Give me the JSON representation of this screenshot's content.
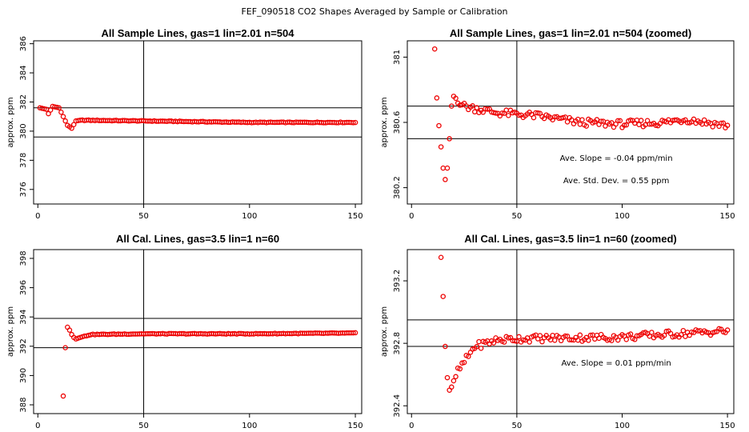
{
  "figure_title": "FEF_090518  CO2 Shapes Averaged by Sample or Calibration",
  "chart_data": [
    {
      "type": "scatter",
      "title": "All Sample Lines, gas=1 lin=2.01 n=504",
      "ylabel": "approx. ppm",
      "xlim": [
        -2,
        153
      ],
      "ylim": [
        375,
        386.2
      ],
      "xticks": [
        0,
        50,
        100,
        150
      ],
      "yticks": [
        376,
        378,
        380,
        382,
        384,
        386
      ],
      "hlines": [
        381.6,
        379.6
      ],
      "vline": 50,
      "marker_color": "#ee0000",
      "series": {
        "x_start": 1,
        "x_end": 150,
        "anchors": [
          [
            1,
            381.6
          ],
          [
            4,
            381.5
          ],
          [
            5,
            381.2
          ],
          [
            7,
            381.7
          ],
          [
            10,
            381.6
          ],
          [
            12,
            381.0
          ],
          [
            14,
            380.4
          ],
          [
            16,
            380.2
          ],
          [
            18,
            380.7
          ],
          [
            20,
            380.75
          ],
          [
            50,
            380.7
          ],
          [
            100,
            380.6
          ],
          [
            150,
            380.6
          ]
        ]
      },
      "annotations": []
    },
    {
      "type": "scatter",
      "title": "All Sample Lines, gas=1 lin=2.01 n=504 (zoomed)",
      "ylabel": "approx. ppm",
      "xlim": [
        -2,
        153
      ],
      "ylim": [
        380.1,
        381.1
      ],
      "xticks": [
        0,
        50,
        100,
        150
      ],
      "yticks": [
        380.2,
        380.6,
        381.0
      ],
      "hlines": [
        380.7,
        380.5
      ],
      "vline": 50,
      "marker_color": "#ee0000",
      "series": {
        "x_start": 11,
        "x_end": 150,
        "anchors": [
          [
            11,
            381.05
          ],
          [
            12,
            380.75
          ],
          [
            13,
            380.58
          ],
          [
            14,
            380.45
          ],
          [
            15,
            380.32
          ],
          [
            16,
            380.25
          ],
          [
            17,
            380.32
          ],
          [
            18,
            380.5
          ],
          [
            19,
            380.7
          ],
          [
            20,
            380.76
          ],
          [
            25,
            380.7
          ],
          [
            40,
            380.66
          ],
          [
            60,
            380.64
          ],
          [
            80,
            380.6
          ],
          [
            100,
            380.59
          ],
          [
            120,
            380.6
          ],
          [
            130,
            380.62
          ],
          [
            150,
            380.58
          ]
        ]
      },
      "annotations": [
        "Ave. Slope =  -0.04  ppm/min",
        "Ave. Std. Dev. =  0.55  ppm"
      ]
    },
    {
      "type": "scatter",
      "title": "All Cal. Lines, gas=3.5 lin=1 n=60",
      "ylabel": "approx. ppm",
      "xlim": [
        -2,
        153
      ],
      "ylim": [
        387.4,
        398.6
      ],
      "xticks": [
        0,
        50,
        100,
        150
      ],
      "yticks": [
        388,
        390,
        392,
        394,
        396,
        398
      ],
      "hlines": [
        393.9,
        391.9
      ],
      "vline": 50,
      "marker_color": "#ee0000",
      "series": {
        "x_start": 12,
        "x_end": 150,
        "anchors": [
          [
            12,
            388.6
          ],
          [
            13,
            391.9
          ],
          [
            14,
            393.3
          ],
          [
            15,
            393.1
          ],
          [
            16,
            392.8
          ],
          [
            17,
            392.6
          ],
          [
            18,
            392.5
          ],
          [
            20,
            392.6
          ],
          [
            25,
            392.8
          ],
          [
            50,
            392.85
          ],
          [
            100,
            392.85
          ],
          [
            150,
            392.9
          ]
        ]
      },
      "annotations": []
    },
    {
      "type": "scatter",
      "title": "All Cal. Lines, gas=3.5 lin=1 n=60 (zoomed)",
      "ylabel": "approx. ppm",
      "xlim": [
        -2,
        153
      ],
      "ylim": [
        392.35,
        393.4
      ],
      "xticks": [
        0,
        50,
        100,
        150
      ],
      "yticks": [
        392.4,
        392.8,
        393.2
      ],
      "hlines": [
        392.95,
        392.78
      ],
      "vline": 50,
      "marker_color": "#ee0000",
      "series": {
        "x_start": 14,
        "x_end": 150,
        "anchors": [
          [
            14,
            393.35
          ],
          [
            15,
            393.1
          ],
          [
            16,
            392.78
          ],
          [
            17,
            392.58
          ],
          [
            18,
            392.5
          ],
          [
            19,
            392.52
          ],
          [
            20,
            392.56
          ],
          [
            22,
            392.62
          ],
          [
            25,
            392.68
          ],
          [
            30,
            392.78
          ],
          [
            40,
            392.82
          ],
          [
            50,
            392.83
          ],
          [
            100,
            392.84
          ],
          [
            150,
            392.88
          ]
        ]
      },
      "annotations": [
        "Ave. Slope =  0.01  ppm/min"
      ]
    }
  ]
}
